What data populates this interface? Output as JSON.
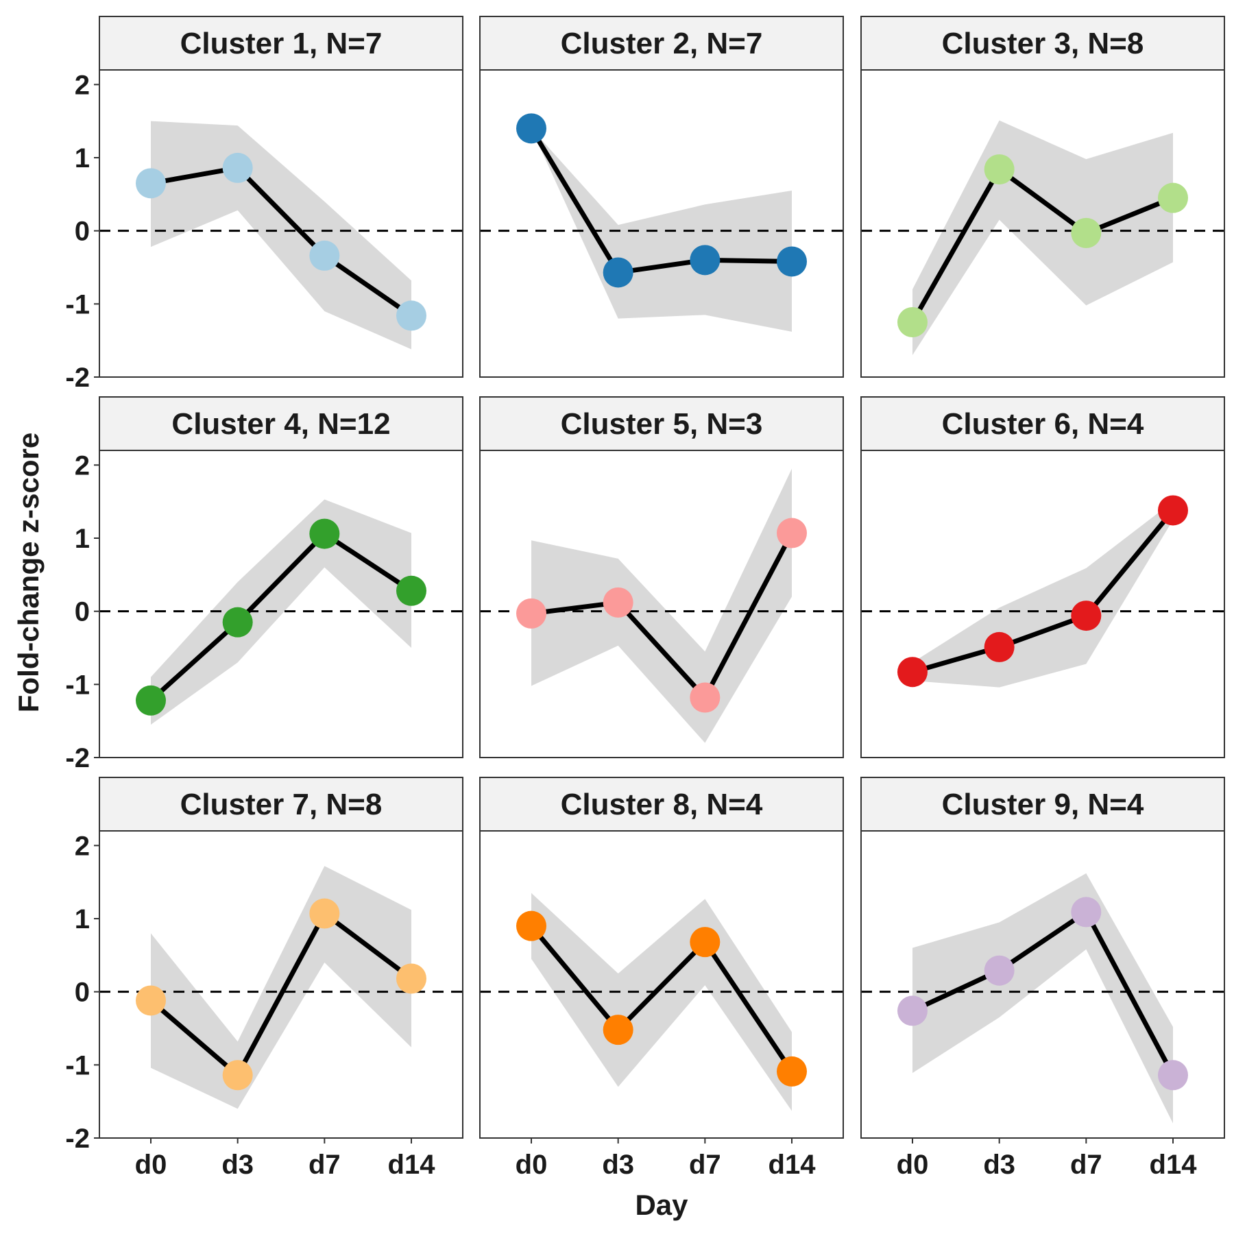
{
  "chart_data": {
    "type": "line",
    "layout": "faceted-3x3",
    "x": [
      "d0",
      "d3",
      "d7",
      "d14"
    ],
    "xlabel": "Day",
    "ylabel": "Fold-change z-score",
    "ylim": [
      -2,
      2
    ],
    "yticks": [
      "2",
      "1",
      "0",
      "-1",
      "-2"
    ],
    "reference_line": {
      "y": 0,
      "style": "dashed"
    },
    "grid": false,
    "band": "shaded ribbon (lower/upper)",
    "panels": [
      {
        "title": "Cluster 1, N=7",
        "color": "#a6cee3",
        "values": [
          0.65,
          0.86,
          -0.34,
          -1.16
        ],
        "lower": [
          -0.22,
          0.28,
          -1.1,
          -1.62
        ],
        "upper": [
          1.5,
          1.44,
          0.4,
          -0.68
        ]
      },
      {
        "title": "Cluster 2, N=7",
        "color": "#1f78b4",
        "values": [
          1.4,
          -0.57,
          -0.4,
          -0.42
        ],
        "lower": [
          1.4,
          -1.2,
          -1.15,
          -1.38
        ],
        "upper": [
          1.4,
          0.08,
          0.36,
          0.55
        ]
      },
      {
        "title": "Cluster 3, N=8",
        "color": "#b2df8a",
        "values": [
          -1.25,
          0.84,
          -0.03,
          0.45
        ],
        "lower": [
          -1.7,
          0.15,
          -1.02,
          -0.43
        ],
        "upper": [
          -0.8,
          1.51,
          0.98,
          1.34
        ]
      },
      {
        "title": "Cluster 4, N=12",
        "color": "#33a02c",
        "values": [
          -1.22,
          -0.15,
          1.06,
          0.28
        ],
        "lower": [
          -1.55,
          -0.7,
          0.6,
          -0.5
        ],
        "upper": [
          -0.9,
          0.4,
          1.53,
          1.07
        ]
      },
      {
        "title": "Cluster 5, N=3",
        "color": "#fb9a99",
        "values": [
          -0.03,
          0.12,
          -1.18,
          1.07
        ],
        "lower": [
          -1.02,
          -0.47,
          -1.8,
          0.2
        ],
        "upper": [
          0.97,
          0.72,
          -0.55,
          1.95
        ]
      },
      {
        "title": "Cluster 6, N=4",
        "color": "#e31a1c",
        "values": [
          -0.83,
          -0.49,
          -0.06,
          1.38
        ],
        "lower": [
          -0.95,
          -1.04,
          -0.72,
          1.25
        ],
        "upper": [
          -0.7,
          0.05,
          0.59,
          1.5
        ]
      },
      {
        "title": "Cluster 7, N=8",
        "color": "#fdbf6f",
        "values": [
          -0.12,
          -1.14,
          1.07,
          0.18
        ],
        "lower": [
          -1.04,
          -1.6,
          0.4,
          -0.76
        ],
        "upper": [
          0.8,
          -0.68,
          1.72,
          1.12
        ]
      },
      {
        "title": "Cluster 8, N=4",
        "color": "#ff7f00",
        "values": [
          0.9,
          -0.52,
          0.68,
          -1.09
        ],
        "lower": [
          0.45,
          -1.3,
          0.09,
          -1.63
        ],
        "upper": [
          1.35,
          0.25,
          1.27,
          -0.55
        ]
      },
      {
        "title": "Cluster 9, N=4",
        "color": "#cab2d6",
        "values": [
          -0.26,
          0.29,
          1.09,
          -1.14
        ],
        "lower": [
          -1.11,
          -0.35,
          0.58,
          -1.8
        ],
        "upper": [
          0.6,
          0.95,
          1.62,
          -0.48
        ]
      }
    ]
  }
}
